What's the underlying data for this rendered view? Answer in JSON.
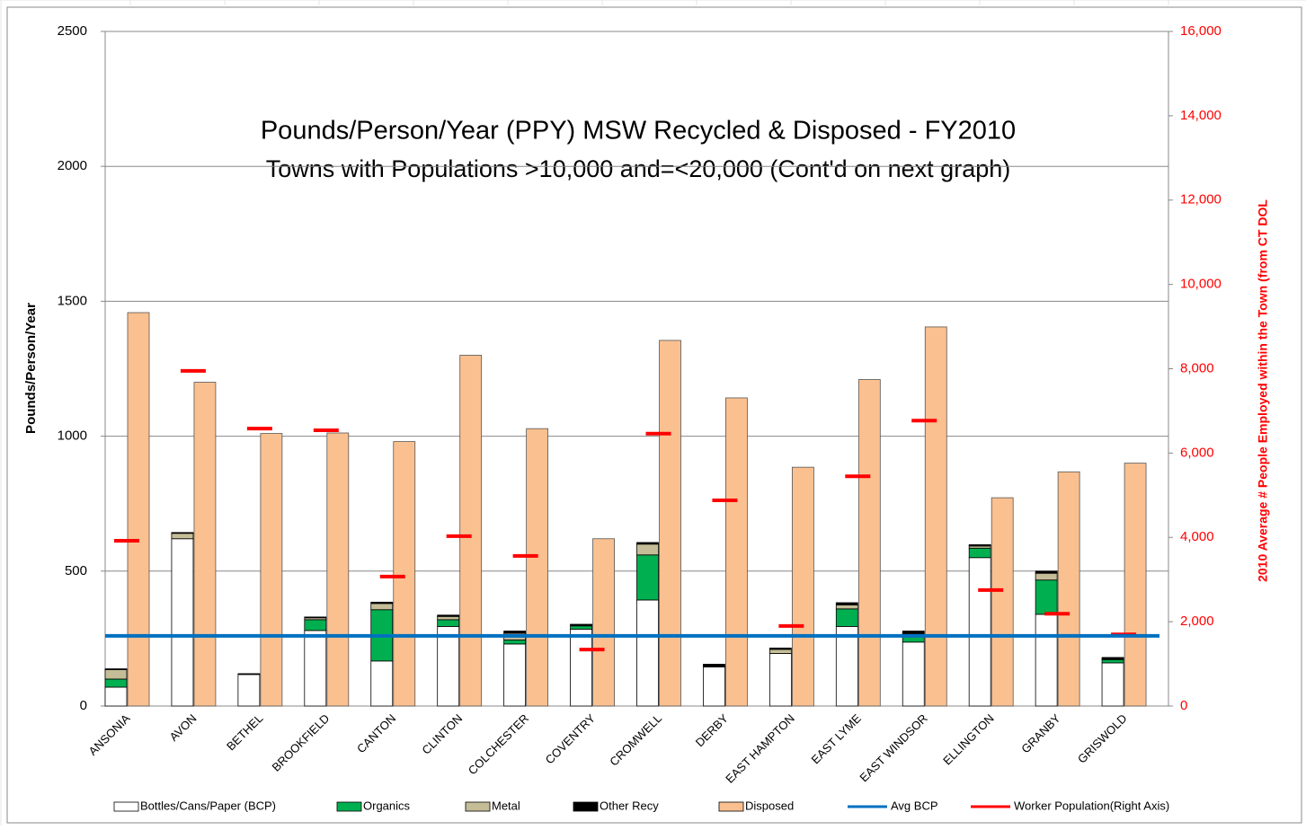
{
  "chart_data": {
    "type": "stacked-bar-line",
    "title": "Pounds/Person/Year  (PPY) MSW Recycled & Disposed - FY2010",
    "subtitle": "Towns with Populations >10,000 and=<20,000 (Cont'd on next graph)",
    "y_label": "Pounds/Person/Year",
    "y2_label": "2010 Average # People Employed within the Town (from CT DOL",
    "categories": [
      "ANSONIA",
      "AVON",
      "BETHEL",
      "BROOKFIELD",
      "CANTON",
      "CLINTON",
      "COLCHESTER",
      "COVENTRY",
      "CROMWELL",
      "DERBY",
      "EAST HAMPTON",
      "EAST LYME",
      "EAST WINDSOR",
      "ELLINGTON",
      "GRANBY",
      "GRISWOLD"
    ],
    "series": [
      {
        "name": "Bottles/Cans/Paper (BCP)",
        "color": "#ffffff",
        "kind": "stack",
        "values": [
          70,
          620,
          117,
          280,
          167,
          295,
          230,
          285,
          393,
          145,
          195,
          295,
          237,
          550,
          340,
          160
        ]
      },
      {
        "name": "Organics",
        "color": "#00b050",
        "kind": "stack",
        "values": [
          30,
          0,
          0,
          40,
          190,
          25,
          15,
          12,
          167,
          0,
          0,
          65,
          30,
          35,
          127,
          12
        ]
      },
      {
        "name": "Metal",
        "color": "#c4bd97",
        "kind": "stack",
        "values": [
          35,
          20,
          0,
          7,
          23,
          12,
          25,
          3,
          40,
          2,
          15,
          15,
          3,
          8,
          25,
          3
        ]
      },
      {
        "name": "Other Recy",
        "color": "#000000",
        "kind": "stack",
        "values": [
          3,
          3,
          3,
          3,
          5,
          5,
          8,
          3,
          6,
          8,
          5,
          8,
          8,
          5,
          8,
          5
        ]
      },
      {
        "name": "Disposed",
        "color": "#fac090",
        "kind": "bar",
        "values": [
          1458,
          1200,
          1010,
          1012,
          980,
          1300,
          1028,
          620,
          1355,
          1142,
          885,
          1210,
          1405,
          772,
          868,
          900
        ]
      },
      {
        "name": "Avg BCP",
        "color": "#0070c0",
        "kind": "line",
        "values": [
          260,
          260,
          260,
          260,
          260,
          260,
          260,
          260,
          260,
          260,
          260,
          260,
          260,
          260,
          260,
          260
        ]
      },
      {
        "name": "Worker Population(Right Axis)",
        "color": "#ff0000",
        "kind": "dash",
        "axis": "y2",
        "values": [
          3920,
          7950,
          6580,
          6540,
          3070,
          4030,
          3560,
          1340,
          6460,
          4880,
          1900,
          5450,
          6770,
          2750,
          2190,
          1700
        ]
      }
    ],
    "ylim": [
      0,
      2500
    ],
    "yticks": [
      0,
      500,
      1000,
      1500,
      2000,
      2500
    ],
    "y2lim": [
      0,
      16000
    ],
    "y2ticks": [
      0,
      {
        "value": 2000,
        "label": "2,000"
      },
      {
        "value": 4000,
        "label": "4,000"
      },
      {
        "value": 6000,
        "label": "6,000"
      },
      {
        "value": 8000,
        "label": "8,000"
      },
      {
        "value": 10000,
        "label": "10,000"
      },
      {
        "value": 12000,
        "label": "12,000"
      },
      {
        "value": 14000,
        "label": "14,000"
      },
      {
        "value": 16000,
        "label": "16,000"
      }
    ],
    "grid": true
  }
}
